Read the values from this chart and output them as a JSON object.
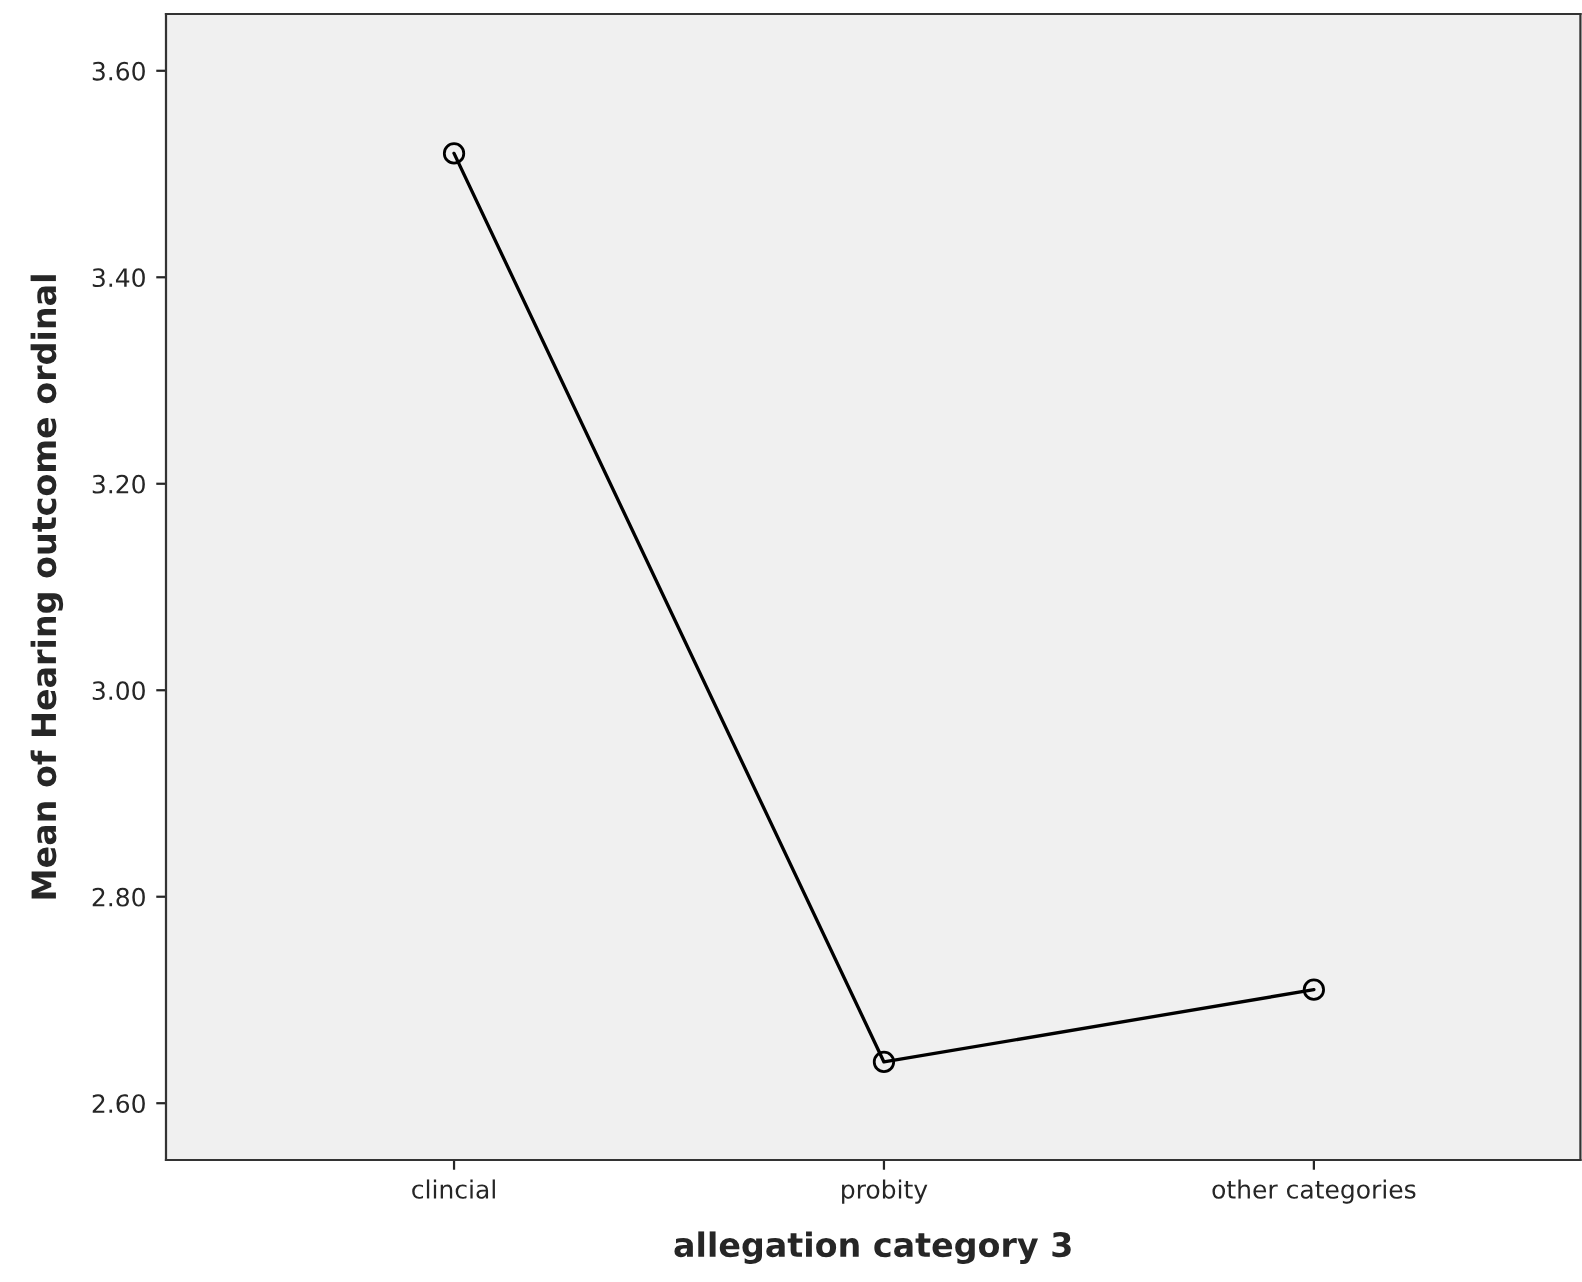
{
  "chart_data": {
    "type": "line",
    "xlabel": "allegation category 3",
    "ylabel": "Mean of Hearing outcome ordinal",
    "categories": [
      "clincial",
      "probity",
      "other categories"
    ],
    "series": [
      {
        "color": "#000000",
        "values": [
          3.52,
          2.64,
          2.71
        ]
      }
    ],
    "ylim": [
      2.545,
      3.655
    ],
    "yticks": [
      {
        "value": 2.6,
        "label": "2.60"
      },
      {
        "value": 2.8,
        "label": "2.80"
      },
      {
        "value": 3.0,
        "label": "3.00"
      },
      {
        "value": 3.2,
        "label": "3.20"
      },
      {
        "value": 3.4,
        "label": "3.40"
      },
      {
        "value": 3.6,
        "label": "3.60"
      }
    ],
    "marker": "circle",
    "line_style": "solid",
    "grid": false
  }
}
